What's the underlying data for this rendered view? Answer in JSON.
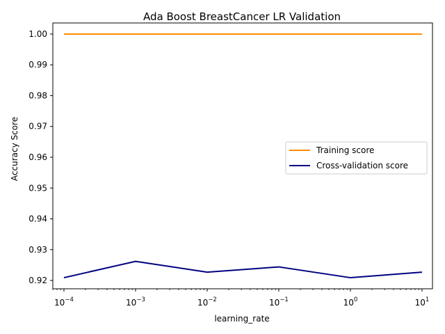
{
  "chart_data": {
    "type": "line",
    "title": "Ada Boost BreastCancer LR Validation",
    "xlabel": "learning_rate",
    "ylabel": "Accuracy Score",
    "xscale": "log",
    "xlim": [
      7e-05,
      14
    ],
    "ylim": [
      0.9173,
      1.0036
    ],
    "x": [
      0.0001,
      0.001,
      0.01,
      0.1,
      1,
      10
    ],
    "x_ticks": [
      {
        "value": 0.0001,
        "base": "10",
        "exp": "−4"
      },
      {
        "value": 0.001,
        "base": "10",
        "exp": "−3"
      },
      {
        "value": 0.01,
        "base": "10",
        "exp": "−2"
      },
      {
        "value": 0.1,
        "base": "10",
        "exp": "−1"
      },
      {
        "value": 1,
        "base": "10",
        "exp": "0"
      },
      {
        "value": 10,
        "base": "10",
        "exp": "1"
      }
    ],
    "y_ticks": [
      "0.92",
      "0.93",
      "0.94",
      "0.95",
      "0.96",
      "0.97",
      "0.98",
      "0.99",
      "1.00"
    ],
    "grid": false,
    "legend_position": "center-right",
    "series": [
      {
        "name": "Training score",
        "color": "#ff8c00",
        "values": [
          1.0,
          1.0,
          1.0,
          1.0,
          1.0,
          1.0
        ]
      },
      {
        "name": "Cross-validation score",
        "color": "#000080",
        "values": [
          0.9209,
          0.9262,
          0.9227,
          0.9244,
          0.9209,
          0.9227
        ]
      }
    ]
  }
}
